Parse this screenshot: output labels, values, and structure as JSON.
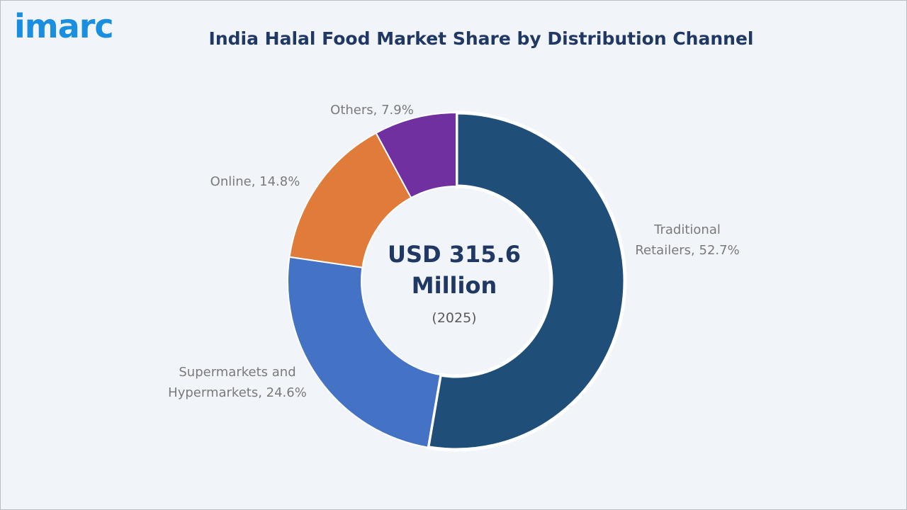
{
  "header": {
    "logo_text": "imarc",
    "title": "India Halal Food Market Share by Distribution Channel"
  },
  "center": {
    "line1": "USD 315.6",
    "line2": "Million",
    "year": "(2025)"
  },
  "chart_data": {
    "type": "pie",
    "title": "India Halal Food Market Share by Distribution Channel",
    "slices": [
      {
        "label": "Traditional Retailers",
        "value": 52.7,
        "color": "#1f4e79",
        "label_lines": [
          "Traditional",
          "Retailers, 52.7%"
        ]
      },
      {
        "label": "Supermarkets and Hypermarkets",
        "value": 24.6,
        "color": "#4472c4",
        "label_lines": [
          "Supermarkets and",
          "Hypermarkets, 24.6%"
        ]
      },
      {
        "label": "Online",
        "value": 14.8,
        "color": "#e07b39",
        "label_lines": [
          "Online, 14.8%"
        ]
      },
      {
        "label": "Others",
        "value": 7.9,
        "color": "#7030a0",
        "label_lines": [
          "Others, 7.9%"
        ]
      }
    ],
    "donut": true,
    "legend": "none"
  }
}
